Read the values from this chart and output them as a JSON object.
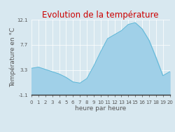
{
  "title": "Evolution de la température",
  "xlabel": "heure par heure",
  "ylabel": "Température en °C",
  "background_color": "#d8e8f0",
  "plot_bg_color": "#d8e8f0",
  "fill_color": "#a0d0e8",
  "line_color": "#60b8d8",
  "title_color": "#cc0000",
  "axis_label_color": "#555555",
  "tick_label_color": "#555555",
  "grid_color": "#ffffff",
  "hours": [
    0,
    1,
    2,
    3,
    4,
    5,
    6,
    7,
    8,
    9,
    10,
    11,
    12,
    13,
    14,
    15,
    16,
    17,
    18,
    19,
    20
  ],
  "temperatures": [
    3.6,
    3.8,
    3.4,
    3.0,
    2.6,
    2.0,
    1.2,
    1.0,
    1.8,
    4.0,
    6.5,
    8.8,
    9.5,
    10.2,
    11.3,
    11.6,
    10.5,
    8.5,
    5.5,
    2.3,
    3.0
  ],
  "ylim": [
    -1.1,
    12.1
  ],
  "yticks": [
    -1.1,
    3.3,
    7.7,
    12.1
  ],
  "ytick_labels": [
    "-1.1",
    "3.3",
    "7.7",
    "12.1"
  ],
  "xlim": [
    0,
    20
  ],
  "xticks": [
    0,
    1,
    2,
    3,
    4,
    5,
    6,
    7,
    8,
    9,
    10,
    11,
    12,
    13,
    14,
    15,
    16,
    17,
    18,
    19,
    20
  ],
  "title_fontsize": 8.5,
  "axis_label_fontsize": 6.5,
  "tick_fontsize": 5.0
}
